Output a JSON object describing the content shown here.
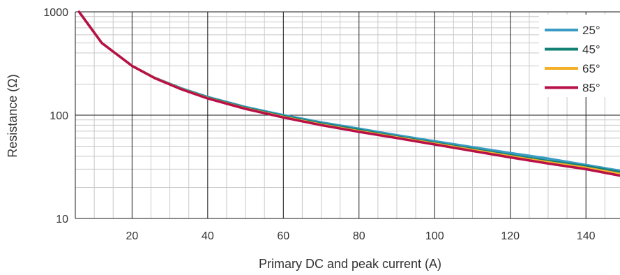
{
  "chart_data": {
    "type": "line",
    "title": "",
    "xlabel": "Primary DC and peak current (A)",
    "ylabel": "Resistance (Ω)",
    "xlim": [
      5,
      149
    ],
    "ylim": [
      10,
      1000
    ],
    "yscale": "log",
    "grid": true,
    "legend_position": "top-right",
    "x_ticks": [
      20,
      40,
      60,
      80,
      100,
      120,
      140
    ],
    "x_tick_labels": [
      "20",
      "40",
      "60",
      "80",
      "100",
      "120",
      "140"
    ],
    "y_ticks": [
      10,
      100,
      1000
    ],
    "y_tick_labels": [
      "10",
      "100",
      "1000"
    ],
    "x": [
      6,
      12,
      20,
      26,
      33,
      40,
      50,
      60,
      70,
      80,
      90,
      100,
      110,
      120,
      130,
      140,
      149
    ],
    "series": [
      {
        "name": "25°",
        "color": "#3a9cc4",
        "values": [
          1000,
          500,
          300,
          230,
          182,
          150,
          120,
          100,
          85,
          74,
          64,
          56,
          49,
          43,
          38,
          33,
          29
        ]
      },
      {
        "name": "45°",
        "color": "#128074",
        "values": [
          1000,
          500,
          300,
          230,
          180,
          148,
          118,
          98,
          83,
          72,
          62,
          54,
          47,
          41,
          36,
          32,
          28
        ]
      },
      {
        "name": "65°",
        "color": "#f4b02a",
        "values": [
          1000,
          500,
          300,
          229,
          179,
          146,
          116,
          96,
          81,
          70,
          61,
          53,
          46,
          40,
          35,
          31,
          27
        ]
      },
      {
        "name": "85°",
        "color": "#b81048",
        "values": [
          1000,
          500,
          300,
          228,
          178,
          145,
          115,
          95,
          80,
          69,
          60,
          52,
          45,
          39,
          34,
          30,
          26
        ]
      }
    ]
  }
}
